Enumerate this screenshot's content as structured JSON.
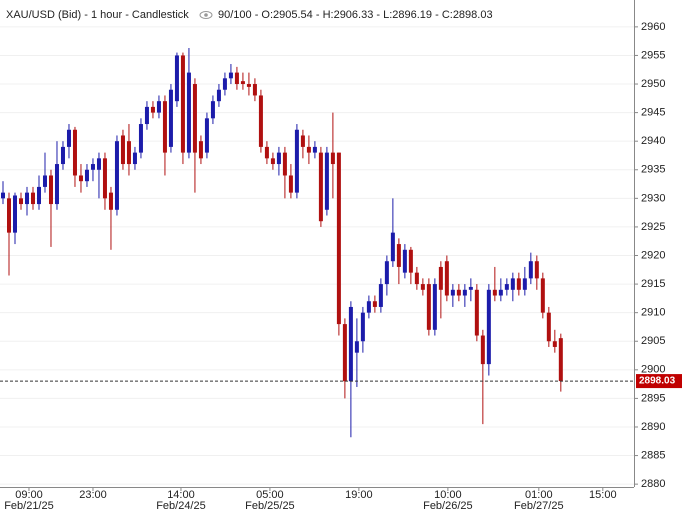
{
  "chart_data": {
    "type": "candlestick",
    "title": "XAU/USD (Bid) - 1 hour - Candlestick",
    "info": "90/100 - O:2905.54 - H:2906.33 - L:2896.19 - C:2898.03",
    "up_color": "#1c1caa",
    "down_color": "#b01010",
    "grid": true,
    "last_price": 2898.03,
    "last_price_color": "#c00000",
    "open": [
      2930,
      2930,
      2924,
      2930,
      2929,
      2931,
      2929,
      2932,
      2934,
      2929,
      2936,
      2939,
      2942,
      2934,
      2933,
      2935,
      2935,
      2937,
      2931,
      2928,
      2941,
      2940,
      2936,
      2938,
      2943,
      2946,
      2945,
      2947,
      2939,
      2947,
      2955,
      2938,
      2950,
      2940,
      2938,
      2944,
      2947,
      2949,
      2951,
      2952,
      2950.5,
      2950,
      2950,
      2948,
      2939,
      2937,
      2936,
      2938,
      2934,
      2931,
      2941,
      2939,
      2938,
      2938,
      2928,
      2938,
      2938,
      2908,
      2898,
      2903,
      2905,
      2910,
      2912,
      2911,
      2915,
      2919,
      2922,
      2917,
      2921,
      2917,
      2915,
      2915,
      2907,
      2918,
      2919,
      2913,
      2914,
      2913,
      2914,
      2914,
      2906,
      2901,
      2914,
      2913,
      2914,
      2914,
      2916,
      2914,
      2916,
      2919,
      2916,
      2910,
      2905,
      2905.54
    ],
    "high": [
      2933,
      2931,
      2931,
      2931,
      2932,
      2932,
      2934,
      2938,
      2935,
      2940,
      2940,
      2943,
      2942.5,
      2936,
      2936,
      2937,
      2938,
      2938,
      2932,
      2941,
      2942,
      2943,
      2939,
      2944,
      2947,
      2947,
      2948,
      2948,
      2950,
      2955.5,
      2955.5,
      2956.3,
      2951,
      2941,
      2945,
      2948,
      2950,
      2952,
      2953.5,
      2953,
      2952,
      2952,
      2951,
      2949,
      2940,
      2938,
      2939,
      2939,
      2936,
      2943,
      2942,
      2941,
      2940,
      2939,
      2939,
      2945,
      2938,
      2909,
      2912,
      2909,
      2911,
      2913,
      2913,
      2916,
      2920,
      2930,
      2923,
      2922,
      2921.5,
      2918,
      2916,
      2916,
      2916,
      2919,
      2920,
      2915,
      2915,
      2915,
      2916,
      2915,
      2907,
      2915,
      2918,
      2916,
      2916,
      2917,
      2917,
      2918,
      2920.5,
      2920,
      2917,
      2911,
      2907,
      2906.33
    ],
    "low": [
      2929,
      2916.5,
      2922,
      2928,
      2927,
      2928,
      2928,
      2931,
      2921.5,
      2928,
      2935,
      2937,
      2932,
      2931,
      2932,
      2933,
      2930,
      2928,
      2921,
      2927,
      2935,
      2934,
      2935,
      2937,
      2942,
      2944,
      2944,
      2934,
      2938,
      2946,
      2936,
      2937,
      2931,
      2936,
      2937,
      2943,
      2946,
      2948,
      2950,
      2949,
      2949,
      2948,
      2947,
      2938,
      2936,
      2935,
      2934,
      2930,
      2930,
      2930,
      2937,
      2936,
      2937,
      2925,
      2927,
      2930,
      2906,
      2895,
      2888.2,
      2897,
      2903,
      2909,
      2910,
      2910,
      2913,
      2918,
      2915,
      2916,
      2915,
      2914,
      2913,
      2906,
      2906,
      2909,
      2912,
      2911,
      2912,
      2911,
      2912,
      2905,
      2890.5,
      2899,
      2912,
      2912,
      2913,
      2912,
      2913,
      2913,
      2915,
      2914,
      2909,
      2904,
      2903,
      2896.19
    ],
    "close": [
      2931,
      2924,
      2930.5,
      2929,
      2931,
      2929,
      2932,
      2934,
      2929,
      2936,
      2939,
      2942,
      2934,
      2933,
      2935,
      2936,
      2937,
      2930,
      2928,
      2940,
      2936,
      2936,
      2938,
      2943,
      2946,
      2945,
      2947,
      2938,
      2949,
      2955,
      2938,
      2952,
      2938,
      2937,
      2944,
      2947,
      2949,
      2951,
      2952,
      2950,
      2950,
      2949.5,
      2948,
      2939,
      2937,
      2936,
      2938,
      2934,
      2931,
      2942,
      2939,
      2938,
      2939,
      2926,
      2938,
      2936,
      2908,
      2898,
      2911,
      2905,
      2910,
      2912,
      2911,
      2915,
      2919,
      2924,
      2918,
      2921,
      2917,
      2915,
      2914,
      2907,
      2915,
      2914,
      2913,
      2914,
      2913,
      2914,
      2914.5,
      2906,
      2901,
      2914,
      2913,
      2914,
      2915,
      2916,
      2914,
      2916,
      2919,
      2916,
      2910,
      2905,
      2904,
      2898.03
    ],
    "xlim": [
      -0.5,
      105.2
    ],
    "xticks": [
      {
        "value": 4.33,
        "label": "09:00",
        "date": "Feb/21/25"
      },
      {
        "value": 15,
        "label": "23:00"
      },
      {
        "value": 29.67,
        "label": "14:00",
        "date": "Feb/24/25"
      },
      {
        "value": 44.5,
        "label": "05:00",
        "date": "Feb/25/25"
      },
      {
        "value": 59.33,
        "label": "19:00"
      },
      {
        "value": 74.17,
        "label": "10:00",
        "date": "Feb/26/25"
      },
      {
        "value": 89.33,
        "label": "01:00",
        "date": "Feb/27/25"
      },
      {
        "value": 100,
        "label": "15:00"
      }
    ],
    "ylim": [
      2879.5,
      2964.7
    ],
    "yticks": [
      2880,
      2885,
      2890,
      2895,
      2900,
      2905,
      2910,
      2915,
      2920,
      2925,
      2930,
      2935,
      2940,
      2945,
      2950,
      2955,
      2960
    ]
  }
}
